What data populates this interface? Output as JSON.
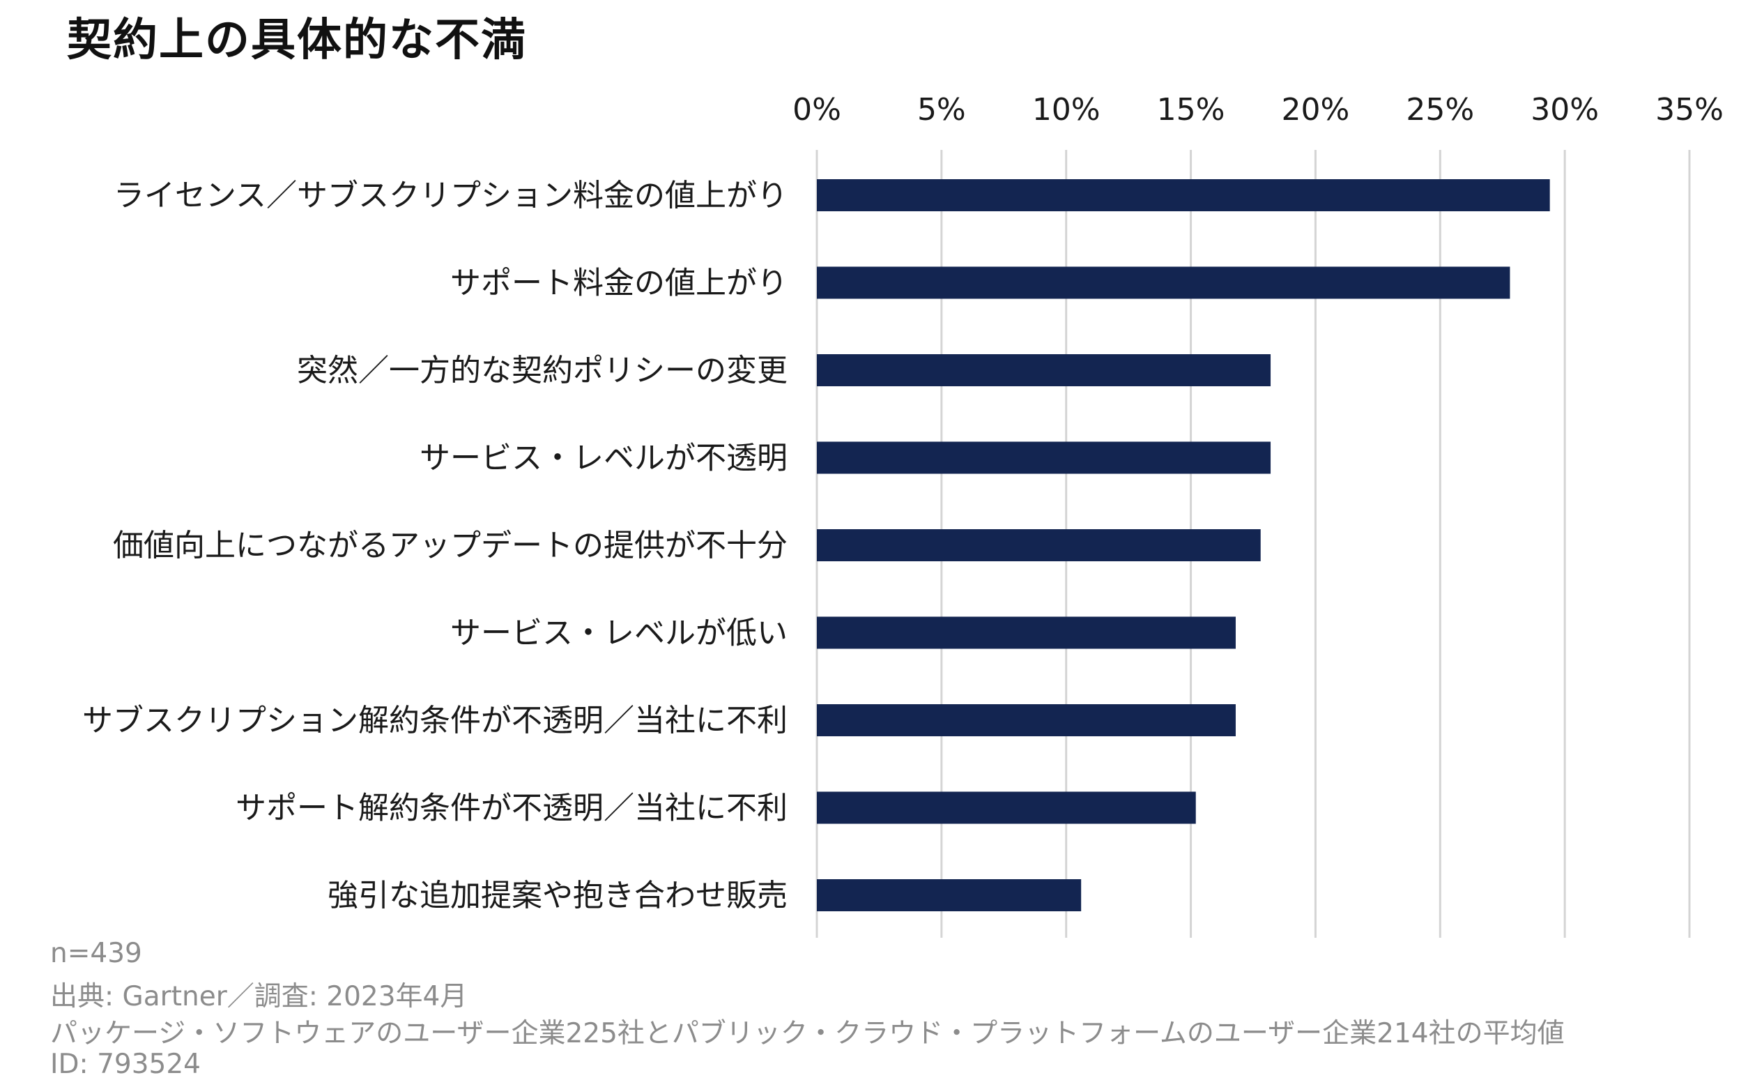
{
  "chart_data": {
    "type": "bar",
    "orientation": "horizontal",
    "title": "契約上の具体的な不満",
    "xlabel": "",
    "ylabel": "",
    "xlim": [
      0,
      35
    ],
    "ticks": [
      "0%",
      "5%",
      "10%",
      "15%",
      "20%",
      "25%",
      "30%",
      "35%"
    ],
    "grid": true,
    "legend": "none",
    "bar_color": "#132551",
    "grid_color": "#d4d4d4",
    "categories": [
      "ライセンス／サブスクリプション料金の値上がり",
      "サポート料金の値上がり",
      "突然／一方的な契約ポリシーの変更",
      "サービス・レベルが不透明",
      "価値向上につながるアップデートの提供が不十分",
      "サービス・レベルが低い",
      "サブスクリプション解約条件が不透明／当社に不利",
      "サポート解約条件が不透明／当社に不利",
      "強引な追加提案や抱き合わせ販売"
    ],
    "values": [
      29.4,
      27.8,
      18.2,
      18.2,
      17.8,
      16.8,
      16.8,
      15.2,
      10.6
    ]
  },
  "footnotes": {
    "sample": "n=439",
    "source": "出典: Gartner／調査: 2023年4月",
    "note": "パッケージ・ソフトウェアのユーザー企業225社とパブリック・クラウド・プラットフォームのユーザー企業214社の平均値",
    "id": "ID: 793524"
  }
}
